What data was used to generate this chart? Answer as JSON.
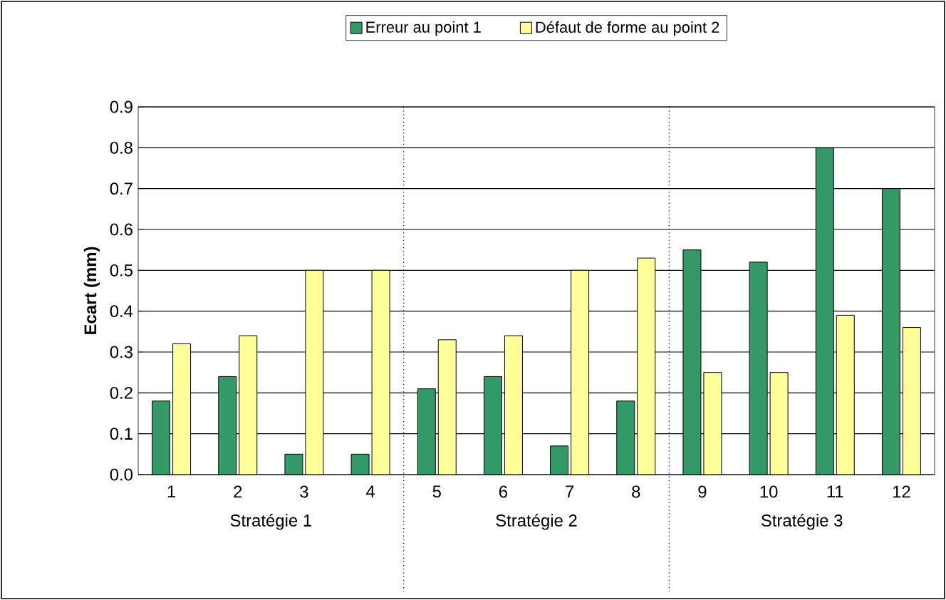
{
  "chart_data": {
    "type": "bar",
    "ylabel": "**Ecart (mm)**",
    "categories": [
      "1",
      "2",
      "3",
      "4",
      "5",
      "6",
      "7",
      "8",
      "9",
      "10",
      "11",
      "12"
    ],
    "series": [
      {
        "name": "Erreur au point 1",
        "color": "#339966",
        "values": [
          0.18,
          0.24,
          0.05,
          0.05,
          0.21,
          0.24,
          0.07,
          0.18,
          0.55,
          0.52,
          0.8,
          0.7
        ]
      },
      {
        "name": "Défaut de forme au point 2",
        "color": "#ffff99",
        "values": [
          0.32,
          0.34,
          0.5,
          0.5,
          0.33,
          0.34,
          0.5,
          0.53,
          0.25,
          0.25,
          0.39,
          0.36
        ]
      }
    ],
    "ylim": [
      0,
      0.9
    ],
    "yticks": [
      {
        "value": 0,
        "label": "0.0"
      },
      0.1,
      0.2,
      0.3,
      0.4,
      0.5,
      0.6,
      0.7,
      0.8,
      0.9
    ],
    "annotations": [
      "Stratégie 1",
      "Stratégie 2",
      "Stratégie 3"
    ],
    "grid": "y",
    "legend": "top"
  }
}
